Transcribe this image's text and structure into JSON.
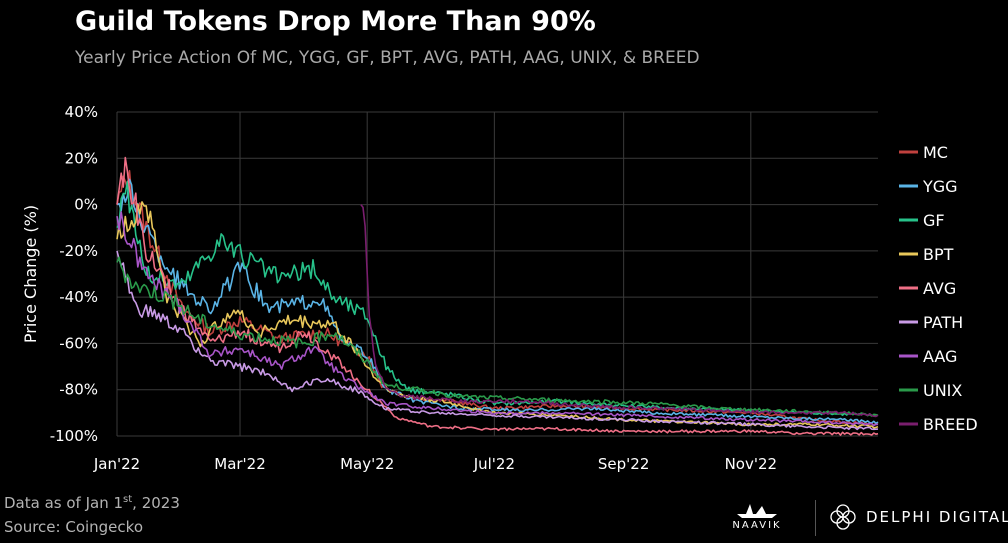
{
  "header": {
    "title": "Guild Tokens Drop More Than 90%",
    "subtitle": "Yearly Price Action Of MC, YGG, GF, BPT, AVG, PATH, AAG, UNIX, & BREED"
  },
  "footer": {
    "data_as_of": "Data as of Jan 1",
    "data_as_of_sup": "st",
    "data_as_of_year": ", 2023",
    "source": "Source: Coingecko",
    "logo_left": "NAAVIK",
    "logo_right": "DELPHI DIGITAL"
  },
  "colors": {
    "background": "#000000",
    "grid": "#3a3a3a",
    "MC": "#c0413e",
    "YGG": "#5ab4e6",
    "GF": "#27c28a",
    "BPT": "#e8c75a",
    "AVG": "#ef6f86",
    "PATH": "#c99be6",
    "AAG": "#a855c8",
    "UNIX": "#2a9a4a",
    "BREED": "#7a1e6e"
  },
  "chart_data": {
    "type": "line",
    "title": "Guild Tokens Drop More Than 90%",
    "subtitle": "Yearly Price Action Of MC, YGG, GF, BPT, AVG, PATH, AAG, UNIX, & BREED",
    "xlabel": "",
    "ylabel": "Price Change (%)",
    "x_tick_labels": [
      "Jan'22",
      "Mar'22",
      "May'22",
      "Jul'22",
      "Sep'22",
      "Nov'22"
    ],
    "y_tick_labels": [
      "40%",
      "20%",
      "0%",
      "-20%",
      "-40%",
      "-60%",
      "-80%",
      "-100%"
    ],
    "ylim": [
      -100,
      40
    ],
    "xlim": [
      "2022-01-01",
      "2023-01-01"
    ],
    "legend_placement": "right",
    "grid": true,
    "series": [
      {
        "name": "MC",
        "points": [
          [
            "2022-01-01",
            0
          ],
          [
            "2022-01-06",
            12
          ],
          [
            "2022-01-15",
            -10
          ],
          [
            "2022-02-01",
            -45
          ],
          [
            "2022-02-15",
            -55
          ],
          [
            "2022-03-01",
            -50
          ],
          [
            "2022-03-20",
            -58
          ],
          [
            "2022-04-10",
            -55
          ],
          [
            "2022-04-20",
            -60
          ],
          [
            "2022-05-01",
            -65
          ],
          [
            "2022-05-08",
            -78
          ],
          [
            "2022-05-20",
            -83
          ],
          [
            "2022-06-10",
            -85
          ],
          [
            "2022-07-01",
            -88
          ],
          [
            "2022-08-01",
            -87
          ],
          [
            "2022-09-01",
            -88
          ],
          [
            "2022-10-01",
            -89
          ],
          [
            "2022-11-01",
            -90
          ],
          [
            "2022-12-01",
            -93
          ],
          [
            "2023-01-01",
            -95
          ]
        ]
      },
      {
        "name": "YGG",
        "points": [
          [
            "2022-01-01",
            0
          ],
          [
            "2022-01-07",
            5
          ],
          [
            "2022-01-20",
            -20
          ],
          [
            "2022-02-01",
            -35
          ],
          [
            "2022-02-15",
            -45
          ],
          [
            "2022-03-01",
            -28
          ],
          [
            "2022-03-15",
            -45
          ],
          [
            "2022-04-01",
            -42
          ],
          [
            "2022-04-08",
            -40
          ],
          [
            "2022-04-20",
            -60
          ],
          [
            "2022-05-01",
            -65
          ],
          [
            "2022-05-10",
            -80
          ],
          [
            "2022-05-25",
            -85
          ],
          [
            "2022-06-15",
            -88
          ],
          [
            "2022-07-15",
            -89
          ],
          [
            "2022-08-15",
            -88
          ],
          [
            "2022-09-15",
            -90
          ],
          [
            "2022-10-15",
            -91
          ],
          [
            "2022-11-15",
            -92
          ],
          [
            "2022-12-15",
            -93
          ],
          [
            "2023-01-01",
            -94
          ]
        ]
      },
      {
        "name": "GF",
        "points": [
          [
            "2022-01-01",
            -10
          ],
          [
            "2022-01-05",
            10
          ],
          [
            "2022-01-15",
            -30
          ],
          [
            "2022-02-01",
            -35
          ],
          [
            "2022-02-10",
            -25
          ],
          [
            "2022-02-20",
            -15
          ],
          [
            "2022-03-01",
            -22
          ],
          [
            "2022-03-20",
            -32
          ],
          [
            "2022-04-05",
            -28
          ],
          [
            "2022-04-15",
            -40
          ],
          [
            "2022-05-01",
            -48
          ],
          [
            "2022-05-10",
            -70
          ],
          [
            "2022-05-20",
            -80
          ],
          [
            "2022-06-10",
            -82
          ],
          [
            "2022-07-01",
            -86
          ],
          [
            "2022-08-01",
            -85
          ],
          [
            "2022-09-01",
            -87
          ],
          [
            "2022-10-01",
            -88
          ],
          [
            "2022-11-01",
            -89
          ],
          [
            "2022-12-01",
            -90
          ],
          [
            "2023-01-01",
            -91
          ]
        ]
      },
      {
        "name": "BPT",
        "points": [
          [
            "2022-01-01",
            -15
          ],
          [
            "2022-01-08",
            -5
          ],
          [
            "2022-01-15",
            2
          ],
          [
            "2022-01-25",
            -40
          ],
          [
            "2022-02-10",
            -60
          ],
          [
            "2022-02-25",
            -45
          ],
          [
            "2022-03-10",
            -55
          ],
          [
            "2022-03-25",
            -50
          ],
          [
            "2022-04-15",
            -52
          ],
          [
            "2022-04-25",
            -62
          ],
          [
            "2022-05-05",
            -75
          ],
          [
            "2022-05-15",
            -82
          ],
          [
            "2022-06-05",
            -85
          ],
          [
            "2022-07-01",
            -90
          ],
          [
            "2022-08-01",
            -91
          ],
          [
            "2022-09-01",
            -93
          ],
          [
            "2022-10-01",
            -94
          ],
          [
            "2022-11-01",
            -95
          ],
          [
            "2022-12-01",
            -95
          ],
          [
            "2023-01-01",
            -96
          ]
        ]
      },
      {
        "name": "AVG",
        "points": [
          [
            "2022-01-01",
            0
          ],
          [
            "2022-01-05",
            18
          ],
          [
            "2022-01-15",
            -20
          ],
          [
            "2022-02-01",
            -45
          ],
          [
            "2022-02-15",
            -60
          ],
          [
            "2022-03-01",
            -55
          ],
          [
            "2022-03-20",
            -62
          ],
          [
            "2022-04-01",
            -55
          ],
          [
            "2022-04-20",
            -70
          ],
          [
            "2022-05-01",
            -80
          ],
          [
            "2022-05-15",
            -92
          ],
          [
            "2022-06-01",
            -96
          ],
          [
            "2022-07-01",
            -97
          ],
          [
            "2022-08-01",
            -97
          ],
          [
            "2022-09-01",
            -98
          ],
          [
            "2022-10-01",
            -98
          ],
          [
            "2022-11-01",
            -98
          ],
          [
            "2022-12-01",
            -99
          ],
          [
            "2023-01-01",
            -99
          ]
        ]
      },
      {
        "name": "PATH",
        "points": [
          [
            "2022-01-01",
            -20
          ],
          [
            "2022-01-10",
            -45
          ],
          [
            "2022-01-20",
            -48
          ],
          [
            "2022-02-01",
            -55
          ],
          [
            "2022-02-15",
            -68
          ],
          [
            "2022-03-01",
            -70
          ],
          [
            "2022-03-15",
            -73
          ],
          [
            "2022-03-25",
            -80
          ],
          [
            "2022-04-10",
            -75
          ],
          [
            "2022-04-25",
            -80
          ],
          [
            "2022-05-10",
            -88
          ],
          [
            "2022-06-01",
            -90
          ],
          [
            "2022-07-01",
            -91
          ],
          [
            "2022-08-01",
            -92
          ],
          [
            "2022-09-01",
            -93
          ],
          [
            "2022-10-01",
            -94
          ],
          [
            "2022-11-01",
            -95
          ],
          [
            "2022-12-01",
            -96
          ],
          [
            "2023-01-01",
            -97
          ]
        ]
      },
      {
        "name": "AAG",
        "points": [
          [
            "2022-01-01",
            -5
          ],
          [
            "2022-01-15",
            -30
          ],
          [
            "2022-02-01",
            -45
          ],
          [
            "2022-02-15",
            -65
          ],
          [
            "2022-03-01",
            -62
          ],
          [
            "2022-03-20",
            -70
          ],
          [
            "2022-04-05",
            -62
          ],
          [
            "2022-04-20",
            -75
          ],
          [
            "2022-05-10",
            -86
          ],
          [
            "2022-06-01",
            -88
          ],
          [
            "2022-07-01",
            -90
          ],
          [
            "2022-08-01",
            -90
          ],
          [
            "2022-09-01",
            -91
          ],
          [
            "2022-10-01",
            -92
          ],
          [
            "2022-11-01",
            -93
          ],
          [
            "2022-12-01",
            -94
          ],
          [
            "2023-01-01",
            -95
          ]
        ]
      },
      {
        "name": "UNIX",
        "points": [
          [
            "2022-01-01",
            -25
          ],
          [
            "2022-01-10",
            -35
          ],
          [
            "2022-01-25",
            -40
          ],
          [
            "2022-02-10",
            -50
          ],
          [
            "2022-02-25",
            -55
          ],
          [
            "2022-03-15",
            -58
          ],
          [
            "2022-04-01",
            -60
          ],
          [
            "2022-04-15",
            -55
          ],
          [
            "2022-05-01",
            -68
          ],
          [
            "2022-05-10",
            -78
          ],
          [
            "2022-05-25",
            -80
          ],
          [
            "2022-06-15",
            -83
          ],
          [
            "2022-07-15",
            -84
          ],
          [
            "2022-08-15",
            -85
          ],
          [
            "2022-09-15",
            -86
          ],
          [
            "2022-10-15",
            -88
          ],
          [
            "2022-11-15",
            -89
          ],
          [
            "2022-12-15",
            -90
          ],
          [
            "2023-01-01",
            -91
          ]
        ]
      },
      {
        "name": "BREED",
        "points": [
          [
            "2022-04-28",
            0
          ],
          [
            "2022-04-30",
            -5
          ],
          [
            "2022-05-02",
            -50
          ],
          [
            "2022-05-05",
            -70
          ],
          [
            "2022-05-10",
            -80
          ],
          [
            "2022-05-20",
            -83
          ],
          [
            "2022-06-15",
            -85
          ],
          [
            "2022-07-15",
            -85
          ],
          [
            "2022-08-15",
            -87
          ],
          [
            "2022-09-15",
            -88
          ],
          [
            "2022-10-15",
            -89
          ],
          [
            "2022-11-15",
            -90
          ],
          [
            "2022-12-15",
            -90
          ],
          [
            "2023-01-01",
            -91
          ]
        ]
      }
    ]
  }
}
